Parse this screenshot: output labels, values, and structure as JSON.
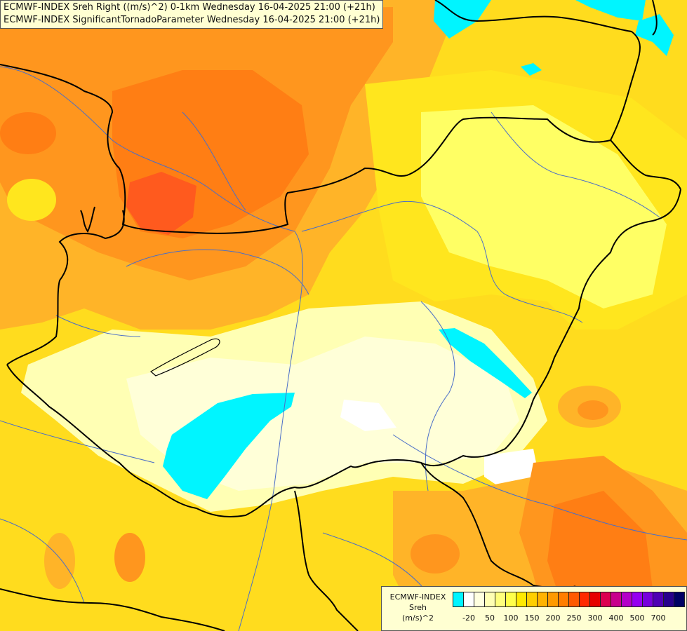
{
  "header": {
    "line1": "ECMWF-INDEX Sreh Right ((m/s)^2) 0-1km Wednesday 16-04-2025 21:00 (+21h)",
    "line2": "ECMWF-INDEX SignificantTornadoParameter Wednesday 16-04-2025 21:00 (+21h)"
  },
  "legend": {
    "title1": "ECMWF-INDEX",
    "title2": "Sreh",
    "title3": "(m/s)^2",
    "colors": [
      "#00f5ff",
      "#ffffff",
      "#ffffe0",
      "#ffffb4",
      "#ffff7d",
      "#ffff4a",
      "#ffea00",
      "#ffcf00",
      "#ffb300",
      "#ff9a00",
      "#ff7e00",
      "#ff5a00",
      "#ff2a00",
      "#e60000",
      "#dc0050",
      "#c8008c",
      "#b400c8",
      "#9600f0",
      "#7800dc",
      "#5000b4",
      "#28008c",
      "#000064"
    ],
    "ticks": [
      "-20",
      "50",
      "100",
      "150",
      "200",
      "250",
      "300",
      "400",
      "500",
      "700"
    ]
  },
  "map": {
    "colors": {
      "orange_dark": "#ff5a1e",
      "orange": "#ff8c1e",
      "orange_light": "#ffb428",
      "yellow_dark": "#ffc814",
      "yellow": "#ffe61e",
      "yellow_light": "#ffff64",
      "pale": "#ffffc0",
      "white": "#ffffff",
      "cyan": "#00f5ff",
      "border": "#000000",
      "river": "#4a6ec8"
    }
  }
}
